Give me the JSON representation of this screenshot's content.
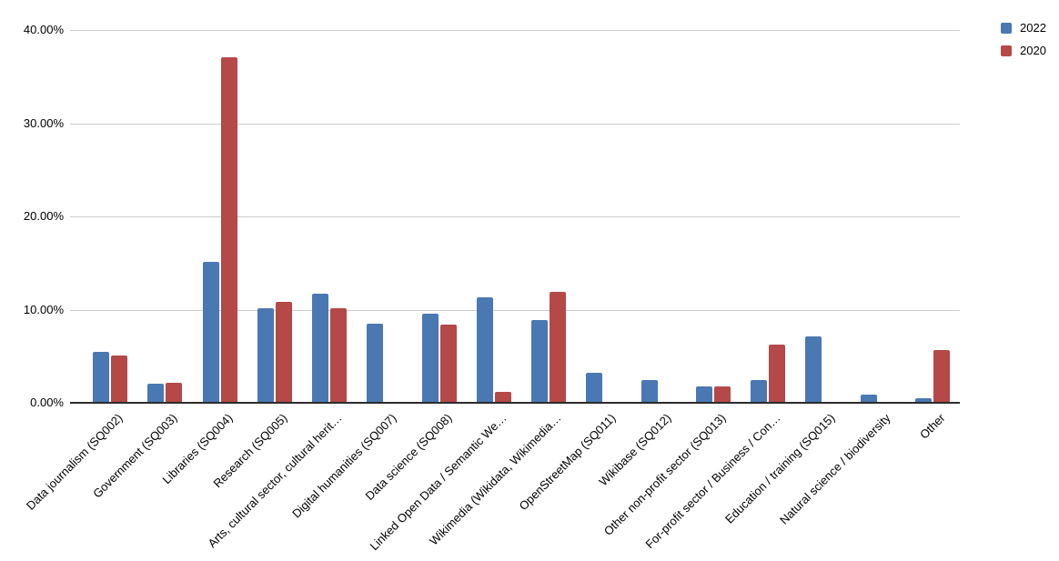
{
  "page": {
    "background": "#ffffff"
  },
  "colors": {
    "series_2022": "#4a78b2",
    "series_2020": "#b44948",
    "gridline": "#cccccc",
    "axis_line": "#2b2b2b",
    "label_text": "#000000"
  },
  "legend": {
    "items": [
      {
        "label": "2022",
        "color": "#4a78b2"
      },
      {
        "label": "2020",
        "color": "#b44948"
      }
    ]
  },
  "chart_data": {
    "type": "bar",
    "title": "",
    "xlabel": "",
    "ylabel": "",
    "grid": true,
    "legend_position": "top-right",
    "ylim": [
      0,
      40
    ],
    "yticks": [
      {
        "value": 40,
        "label": "40.00%"
      },
      {
        "value": 30,
        "label": "30.00%"
      },
      {
        "value": 20,
        "label": "20.00%"
      },
      {
        "value": 10,
        "label": "10.00%"
      },
      {
        "value": 0,
        "label": "0.00%"
      }
    ],
    "categories": [
      "Data journalism (SQ002)",
      "Government (SQ003)",
      "Libraries (SQ004)",
      "Research (SQ005)",
      "Arts, cultural sector, cultural herit…",
      "Digital humanities (SQ007)",
      "Data science (SQ008)",
      "Linked Open Data / Semantic We…",
      "Wikimedia (Wikidata, Wikimedia…",
      "OpenStreetMap (SQ011)",
      "Wikibase (SQ012)",
      "Other non-profit sector (SQ013)",
      "For-profit sector / Business / Con…",
      "Education / training (SQ015)",
      "Natural science / biodiversity",
      "Other"
    ],
    "series": [
      {
        "name": "2022",
        "color": "#4a78b2",
        "values": [
          5.4,
          2.0,
          15.0,
          10.1,
          11.6,
          8.4,
          9.5,
          11.2,
          8.8,
          3.1,
          2.3,
          1.7,
          2.3,
          7.0,
          0.8,
          0.4
        ]
      },
      {
        "name": "2020",
        "color": "#b44948",
        "values": [
          5.0,
          2.1,
          37.0,
          10.7,
          10.1,
          0,
          8.3,
          1.1,
          11.8,
          0,
          0,
          1.7,
          6.2,
          0,
          0,
          5.6
        ]
      }
    ]
  }
}
